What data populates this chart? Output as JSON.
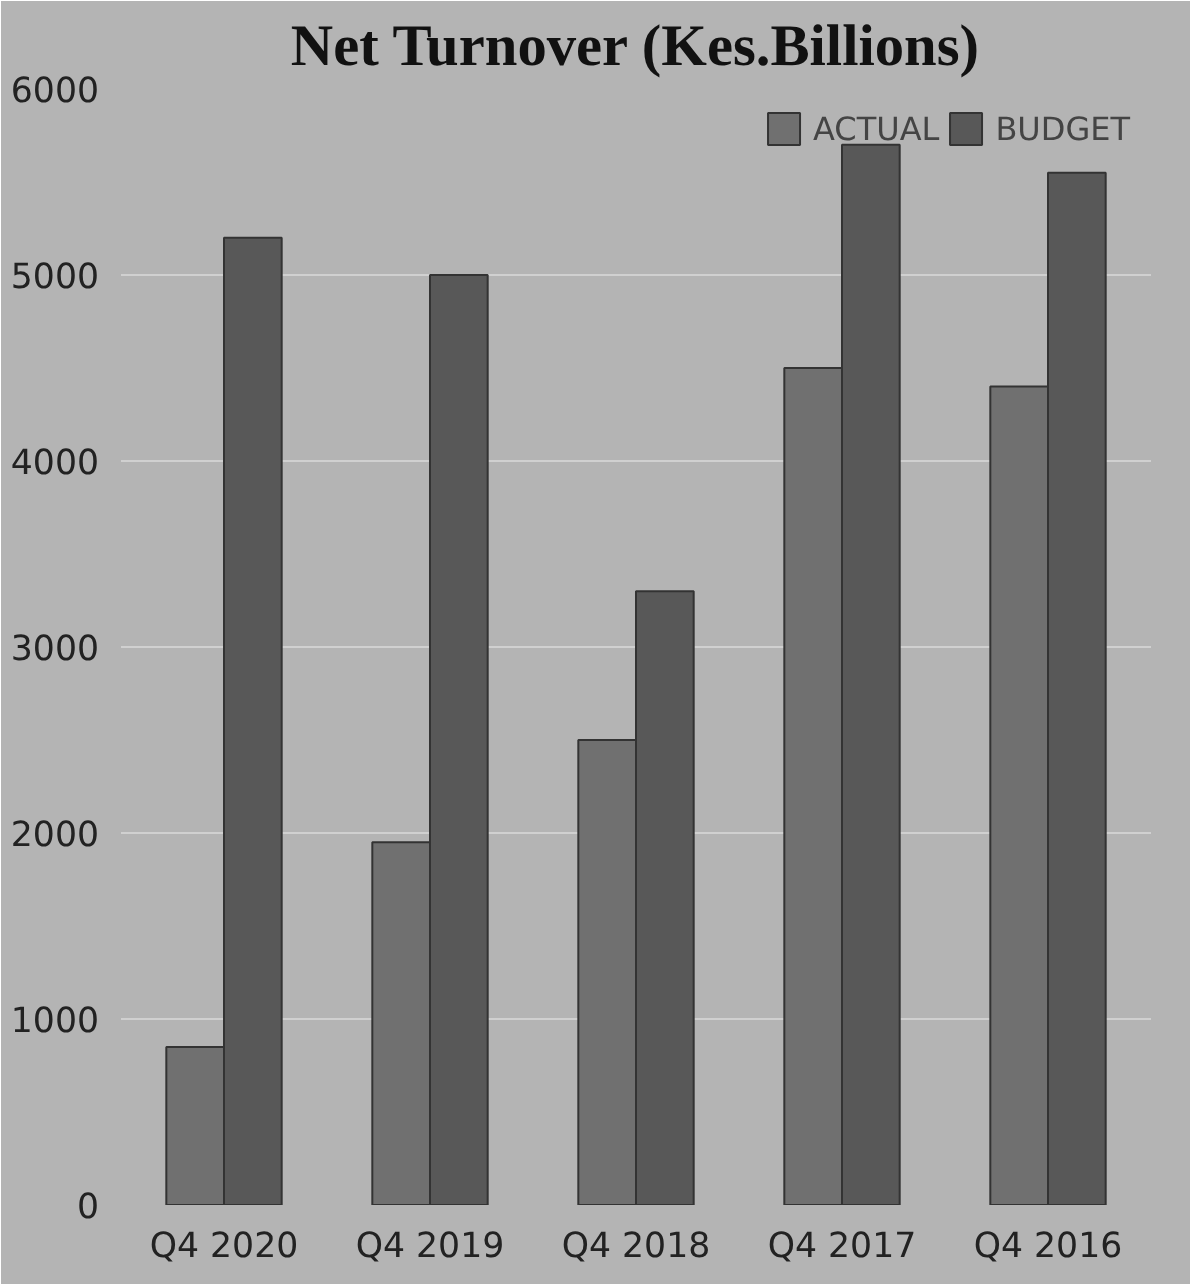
{
  "chart_data": {
    "type": "bar",
    "title": "Net Turnover (Kes.Billions)",
    "categories": [
      "Q4 2020",
      "Q4 2019",
      "Q4 2018",
      "Q4 2017",
      "Q4 2016"
    ],
    "series": [
      {
        "name": "ACTUAL",
        "color": "#707070",
        "values": [
          850,
          1950,
          2500,
          4500,
          4400
        ]
      },
      {
        "name": "BUDGET",
        "color": "#585858",
        "values": [
          5200,
          5000,
          3300,
          5700,
          5550
        ]
      }
    ],
    "ylim": [
      0,
      6000
    ],
    "yticks": [
      0,
      1000,
      2000,
      3000,
      4000,
      5000,
      6000
    ],
    "grid": "y",
    "legend": "top right"
  }
}
